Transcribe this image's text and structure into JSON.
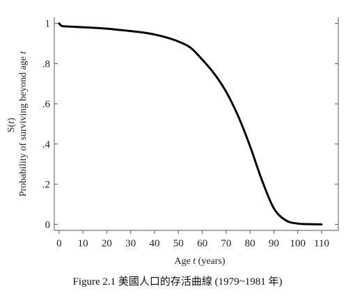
{
  "chart_data": {
    "type": "line",
    "title": "",
    "xlabel": {
      "prefix": "Age ",
      "var": "t",
      "suffix": " (years)"
    },
    "ylabel": {
      "line1_prefix": "S(",
      "line1_var": "t",
      "line1_suffix": ")",
      "line2_prefix": "Probability of surviving beyond age ",
      "line2_var": "t"
    },
    "xlim": [
      -2,
      117
    ],
    "ylim": [
      -0.03,
      1.03
    ],
    "xticks": [
      0,
      10,
      20,
      30,
      40,
      50,
      60,
      70,
      80,
      90,
      100,
      110
    ],
    "xtick_labels": [
      "0",
      "10",
      "20",
      "30",
      "40",
      "50",
      "60",
      "70",
      "80",
      "90",
      "100",
      "110"
    ],
    "yticks": [
      0,
      0.2,
      0.4,
      0.6,
      0.8,
      1
    ],
    "ytick_labels": [
      "0",
      ".2",
      ".4",
      ".6",
      ".8",
      "1"
    ],
    "grid": false,
    "series": [
      {
        "x": [
          0,
          1,
          2,
          5,
          10,
          15,
          20,
          25,
          30,
          35,
          40,
          45,
          50,
          55,
          60,
          65,
          70,
          75,
          80,
          85,
          90,
          95,
          100,
          105,
          110
        ],
        "y": [
          1.0,
          0.988,
          0.986,
          0.984,
          0.981,
          0.978,
          0.974,
          0.968,
          0.962,
          0.955,
          0.945,
          0.93,
          0.91,
          0.88,
          0.82,
          0.75,
          0.66,
          0.54,
          0.39,
          0.22,
          0.08,
          0.02,
          0.004,
          0.001,
          0.0
        ]
      }
    ],
    "line_color": "#000000"
  },
  "caption": "Figure 2.1  美國人口的存活曲線 (1979~1981 年)"
}
